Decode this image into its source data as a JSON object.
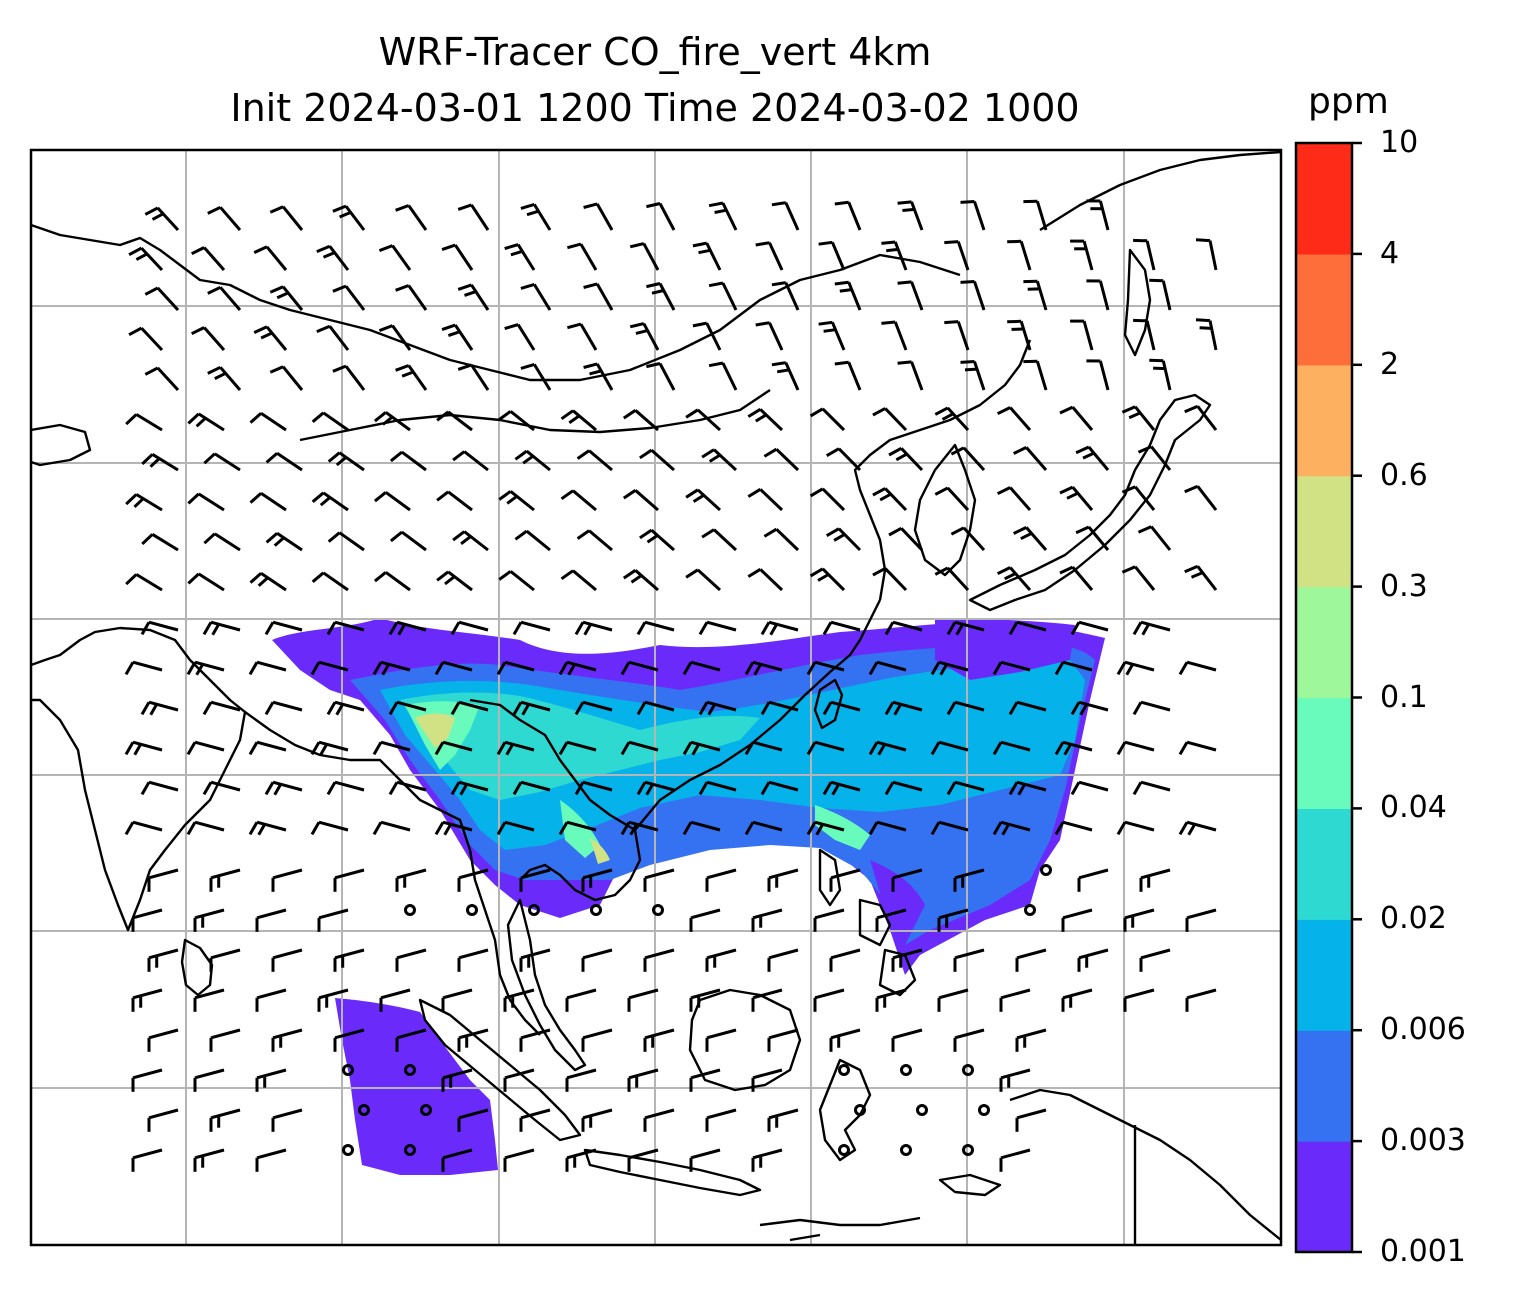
{
  "title_line1": "WRF-Tracer CO_fire_vert 4km",
  "title_line2": "Init 2024-03-01 1200 Time 2024-03-02 1000",
  "colorbar": {
    "units": "ppm",
    "tick_labels": [
      "0.001",
      "0.003",
      "0.006",
      "0.02",
      "0.04",
      "0.1",
      "0.3",
      "0.6",
      "2",
      "4",
      "10"
    ],
    "colors": [
      "#6a2bfa",
      "#3572f2",
      "#06b2ea",
      "#2ed9d2",
      "#68fbbb",
      "#9ef79a",
      "#d1e285",
      "#fdb05f",
      "#fe6e3b",
      "#fd2b18"
    ]
  },
  "map": {
    "gridlines": true,
    "grid_color": "#b5b5b5",
    "coastline_color": "#000000",
    "plume_colors": {
      "lowest": "#6a2bfa",
      "low": "#3572f2",
      "mid": "#06b2ea",
      "upper": "#2ed9d2",
      "high": "#68fbbb",
      "peak": "#d1e285"
    }
  }
}
